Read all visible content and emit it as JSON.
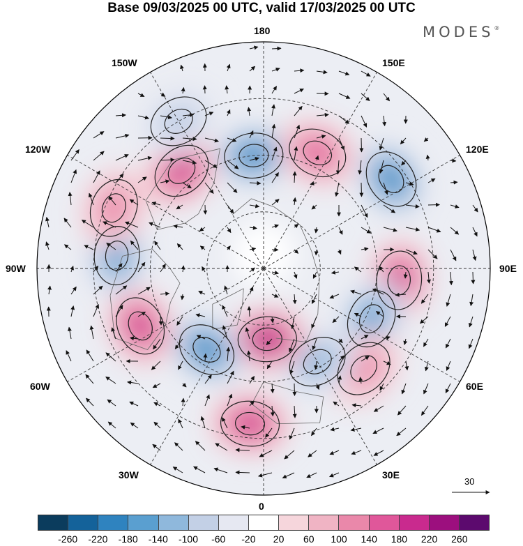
{
  "title": "Base 09/03/2025 00 UTC, valid 17/03/2025 00 UTC",
  "brand": "MODES",
  "brand_mark": "®",
  "longitude_labels": {
    "lon_180": "180",
    "lon_150e": "150E",
    "lon_120e": "120E",
    "lon_90e": "90E",
    "lon_60e": "60E",
    "lon_30e": "30E",
    "lon_0": "0",
    "lon_30w": "30W",
    "lon_60w": "60W",
    "lon_90w": "90W",
    "lon_120w": "120W",
    "lon_150w": "150W"
  },
  "reference_vector": {
    "label": "30"
  },
  "colorbar": {
    "colors": [
      "#0b3c5d",
      "#14629a",
      "#2f83bf",
      "#5a9fd0",
      "#8fb8dc",
      "#c3d0e6",
      "#e6e8f2",
      "#ffffff",
      "#f6d6dc",
      "#f0b4c4",
      "#ea88aa",
      "#e0579a",
      "#c92a8e",
      "#9c0f7e",
      "#5c0a6e"
    ],
    "tick_labels": [
      "-260",
      "-220",
      "-180",
      "-140",
      "-100",
      "-60",
      "-20",
      "20",
      "60",
      "100",
      "140",
      "180",
      "220",
      "260"
    ]
  },
  "anomaly_centers": [
    {
      "name": "pos-north-pacific-east",
      "lon_deg": -140,
      "colat_deg": 45,
      "value": 180
    },
    {
      "name": "neg-north-pacific",
      "lon_deg": -175,
      "colat_deg": 40,
      "value": -180
    },
    {
      "name": "pos-bering",
      "lon_deg": 155,
      "colat_deg": 45,
      "value": 160
    },
    {
      "name": "neg-east-siberia",
      "lon_deg": 125,
      "colat_deg": 55,
      "value": -200
    },
    {
      "name": "pos-siberia",
      "lon_deg": 85,
      "colat_deg": 48,
      "value": 200
    },
    {
      "name": "neg-central-asia",
      "lon_deg": 65,
      "colat_deg": 42,
      "value": -140
    },
    {
      "name": "pos-middle-east",
      "lon_deg": 45,
      "colat_deg": 50,
      "value": 100
    },
    {
      "name": "neg-europe",
      "lon_deg": 30,
      "colat_deg": 38,
      "value": -120
    },
    {
      "name": "pos-greenland-sea",
      "lon_deg": 3,
      "colat_deg": 25,
      "value": 220
    },
    {
      "name": "neg-north-atlantic",
      "lon_deg": -35,
      "colat_deg": 35,
      "value": -200
    },
    {
      "name": "pos-atlantic",
      "lon_deg": -65,
      "colat_deg": 48,
      "value": 200
    },
    {
      "name": "neg-hudson",
      "lon_deg": -95,
      "colat_deg": 52,
      "value": -160
    },
    {
      "name": "pos-north-america-west",
      "lon_deg": -112,
      "colat_deg": 57,
      "value": 100
    },
    {
      "name": "pos-mid-atlantic-south",
      "lon_deg": -5,
      "colat_deg": 55,
      "value": 180
    },
    {
      "name": "neg-alaska",
      "lon_deg": -150,
      "colat_deg": 60,
      "value": -80
    }
  ]
}
